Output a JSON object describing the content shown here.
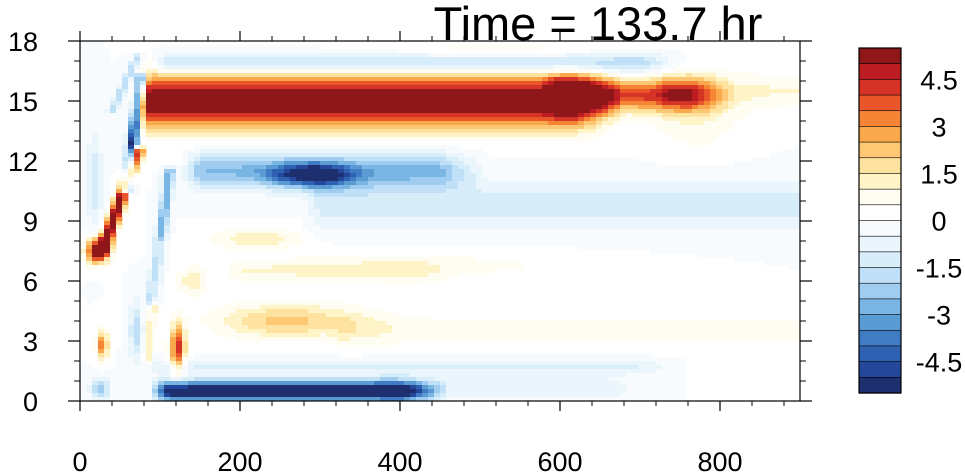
{
  "chart_data": {
    "type": "heatmap",
    "title": "Time = 133.7 hr",
    "xlabel": "",
    "ylabel": "",
    "xlim": [
      0,
      900
    ],
    "ylim": [
      0,
      18
    ],
    "x_ticks": [
      0,
      200,
      400,
      600,
      800
    ],
    "y_ticks": [
      0,
      3,
      6,
      9,
      12,
      15,
      18
    ],
    "x_tick_labels": [
      "0",
      "200",
      "400",
      "600",
      "800"
    ],
    "y_tick_labels": [
      "0",
      "3",
      "6",
      "9",
      "12",
      "15",
      "18"
    ],
    "colorbar": {
      "placement": "right",
      "levels": [
        -5.5,
        -5,
        -4.5,
        -4,
        -3.5,
        -3,
        -2.5,
        -2,
        -1.5,
        -1,
        -0.5,
        0,
        0.5,
        1,
        1.5,
        2,
        2.5,
        3,
        3.5,
        4,
        4.5,
        5,
        5.5
      ],
      "colors": [
        "#1d2f6e",
        "#24479b",
        "#2f61b3",
        "#3f7cc4",
        "#5b9bd3",
        "#7ab6e4",
        "#a0cdef",
        "#bfe0f6",
        "#d7edf9",
        "#eaf5fc",
        "#f7fbfe",
        "#ffffff",
        "#fffdf2",
        "#fff3c8",
        "#fee3a0",
        "#fdc773",
        "#faa84c",
        "#f58535",
        "#e8562a",
        "#d43326",
        "#bc1d22",
        "#8f1619"
      ],
      "tick_values": [
        4.5,
        3,
        1.5,
        0,
        -1.5,
        -3,
        -4.5
      ],
      "tick_labels": [
        "4.5",
        "3",
        "1.5",
        "0",
        "-1.5",
        "-3",
        "-4.5"
      ]
    },
    "features": [
      {
        "kind": "band",
        "value": 6.0,
        "x0": 85,
        "x1": 620,
        "y": 15.0,
        "halfwidth": 1.3
      },
      {
        "kind": "band",
        "value": 4.0,
        "x0": 600,
        "x1": 760,
        "y": 15.3,
        "halfwidth": 0.8
      },
      {
        "kind": "band",
        "value": 1.0,
        "x0": 740,
        "x1": 900,
        "y": 15.5,
        "halfwidth": 0.9
      },
      {
        "kind": "band",
        "value": -2.0,
        "x0": 110,
        "x1": 700,
        "y": 16.9,
        "halfwidth": 0.5
      },
      {
        "kind": "band",
        "value": -2.5,
        "x0": 150,
        "x1": 450,
        "y": 11.5,
        "halfwidth": 0.9
      },
      {
        "kind": "blob",
        "value": -4.0,
        "x": 290,
        "y": 11.3,
        "rx": 50,
        "ry": 0.6
      },
      {
        "kind": "band",
        "value": -1.2,
        "x0": 300,
        "x1": 900,
        "y": 9.8,
        "halfwidth": 1.3
      },
      {
        "kind": "band",
        "value": -6.0,
        "x0": 110,
        "x1": 400,
        "y": 0.5,
        "halfwidth": 0.5
      },
      {
        "kind": "band",
        "value": -1.0,
        "x0": 380,
        "x1": 650,
        "y": 0.6,
        "halfwidth": 0.6
      },
      {
        "kind": "band",
        "value": -1.0,
        "x0": 100,
        "x1": 700,
        "y": 1.7,
        "halfwidth": 0.4
      },
      {
        "kind": "blob",
        "value": 2.2,
        "x": 260,
        "y": 4.0,
        "rx": 90,
        "ry": 0.9
      },
      {
        "kind": "band",
        "value": 0.8,
        "x0": 330,
        "x1": 900,
        "y": 3.5,
        "halfwidth": 0.8
      },
      {
        "kind": "band",
        "value": 1.0,
        "x0": 200,
        "x1": 420,
        "y": 6.5,
        "halfwidth": 0.6
      },
      {
        "kind": "blob",
        "value": 0.6,
        "x": 480,
        "y": 6.8,
        "rx": 180,
        "ry": 0.8
      },
      {
        "kind": "blob",
        "value": 1.4,
        "x": 220,
        "y": 8.1,
        "rx": 60,
        "ry": 0.5
      },
      {
        "kind": "blob",
        "value": 0.7,
        "x": 520,
        "y": 17.6,
        "rx": 150,
        "ry": 0.4
      },
      {
        "kind": "blob",
        "value": 0.9,
        "x": 770,
        "y": 14.2,
        "rx": 60,
        "ry": 1.8
      },
      {
        "kind": "blob",
        "value": 6.0,
        "x": 22,
        "y": 7.5,
        "rx": 14,
        "ry": 0.6
      },
      {
        "kind": "line",
        "value": 6.0,
        "x0": 28,
        "y0": 7.5,
        "x1": 72,
        "y1": 12.5,
        "halfwidth": 8
      },
      {
        "kind": "line",
        "value": -5.5,
        "x0": 58,
        "y0": 10.5,
        "x1": 76,
        "y1": 16.2,
        "halfwidth": 7
      },
      {
        "kind": "line",
        "value": -3.0,
        "x0": 90,
        "y0": 5.0,
        "x1": 112,
        "y1": 11.5,
        "halfwidth": 7
      },
      {
        "kind": "line",
        "value": -2.0,
        "x0": 40,
        "y0": 14.5,
        "x1": 72,
        "y1": 17.2,
        "halfwidth": 6
      },
      {
        "kind": "line",
        "value": 1.5,
        "x0": 84,
        "y0": 2.0,
        "x1": 100,
        "y1": 8.0,
        "halfwidth": 5
      },
      {
        "kind": "blob",
        "value": 4.5,
        "x": 122,
        "y": 2.6,
        "rx": 9,
        "ry": 1.2
      },
      {
        "kind": "blob",
        "value": 3.5,
        "x": 28,
        "y": 2.8,
        "rx": 7,
        "ry": 0.7
      },
      {
        "kind": "blob",
        "value": -2.5,
        "x": 25,
        "y": 0.6,
        "rx": 12,
        "ry": 0.5
      },
      {
        "kind": "blob",
        "value": -2.0,
        "x": 70,
        "y": 3.5,
        "rx": 8,
        "ry": 1.4
      },
      {
        "kind": "blob",
        "value": -1.5,
        "x": 18,
        "y": 11.0,
        "rx": 10,
        "ry": 2.2
      },
      {
        "kind": "blob",
        "value": 1.5,
        "x": 140,
        "y": 6.0,
        "rx": 18,
        "ry": 0.7
      }
    ]
  }
}
